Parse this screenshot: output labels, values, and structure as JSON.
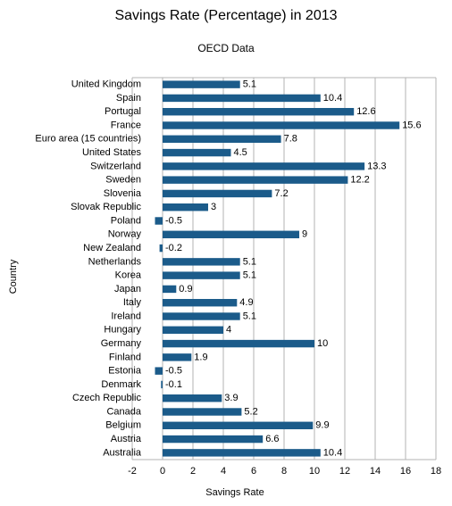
{
  "chart_data": {
    "type": "bar",
    "orientation": "horizontal",
    "title": "Savings Rate (Percentage) in 2013",
    "subtitle": "OECD Data",
    "x_label": "Savings Rate",
    "y_label": "Country",
    "categories": [
      "United Kingdom",
      "Spain",
      "Portugal",
      "France",
      "Euro area (15 countries)",
      "United States",
      "Switzerland",
      "Sweden",
      "Slovenia",
      "Slovak Republic",
      "Poland",
      "Norway",
      "New Zealand",
      "Netherlands",
      "Korea",
      "Japan",
      "Italy",
      "Ireland",
      "Hungary",
      "Germany",
      "Finland",
      "Estonia",
      "Denmark",
      "Czech Republic",
      "Canada",
      "Belgium",
      "Austria",
      "Australia"
    ],
    "values": [
      5.1,
      10.4,
      12.6,
      15.6,
      7.8,
      4.5,
      13.3,
      12.2,
      7.2,
      3,
      -0.5,
      9,
      -0.2,
      5.1,
      5.1,
      0.9,
      4.9,
      5.1,
      4,
      10,
      1.9,
      -0.5,
      -0.1,
      3.9,
      5.2,
      9.9,
      6.6,
      10.4
    ],
    "color": "#1b5b8a",
    "xlim": [
      -2,
      18
    ],
    "xticks": [
      -2,
      0,
      2,
      4,
      6,
      8,
      10,
      12,
      14,
      16,
      18
    ],
    "grid": true
  }
}
